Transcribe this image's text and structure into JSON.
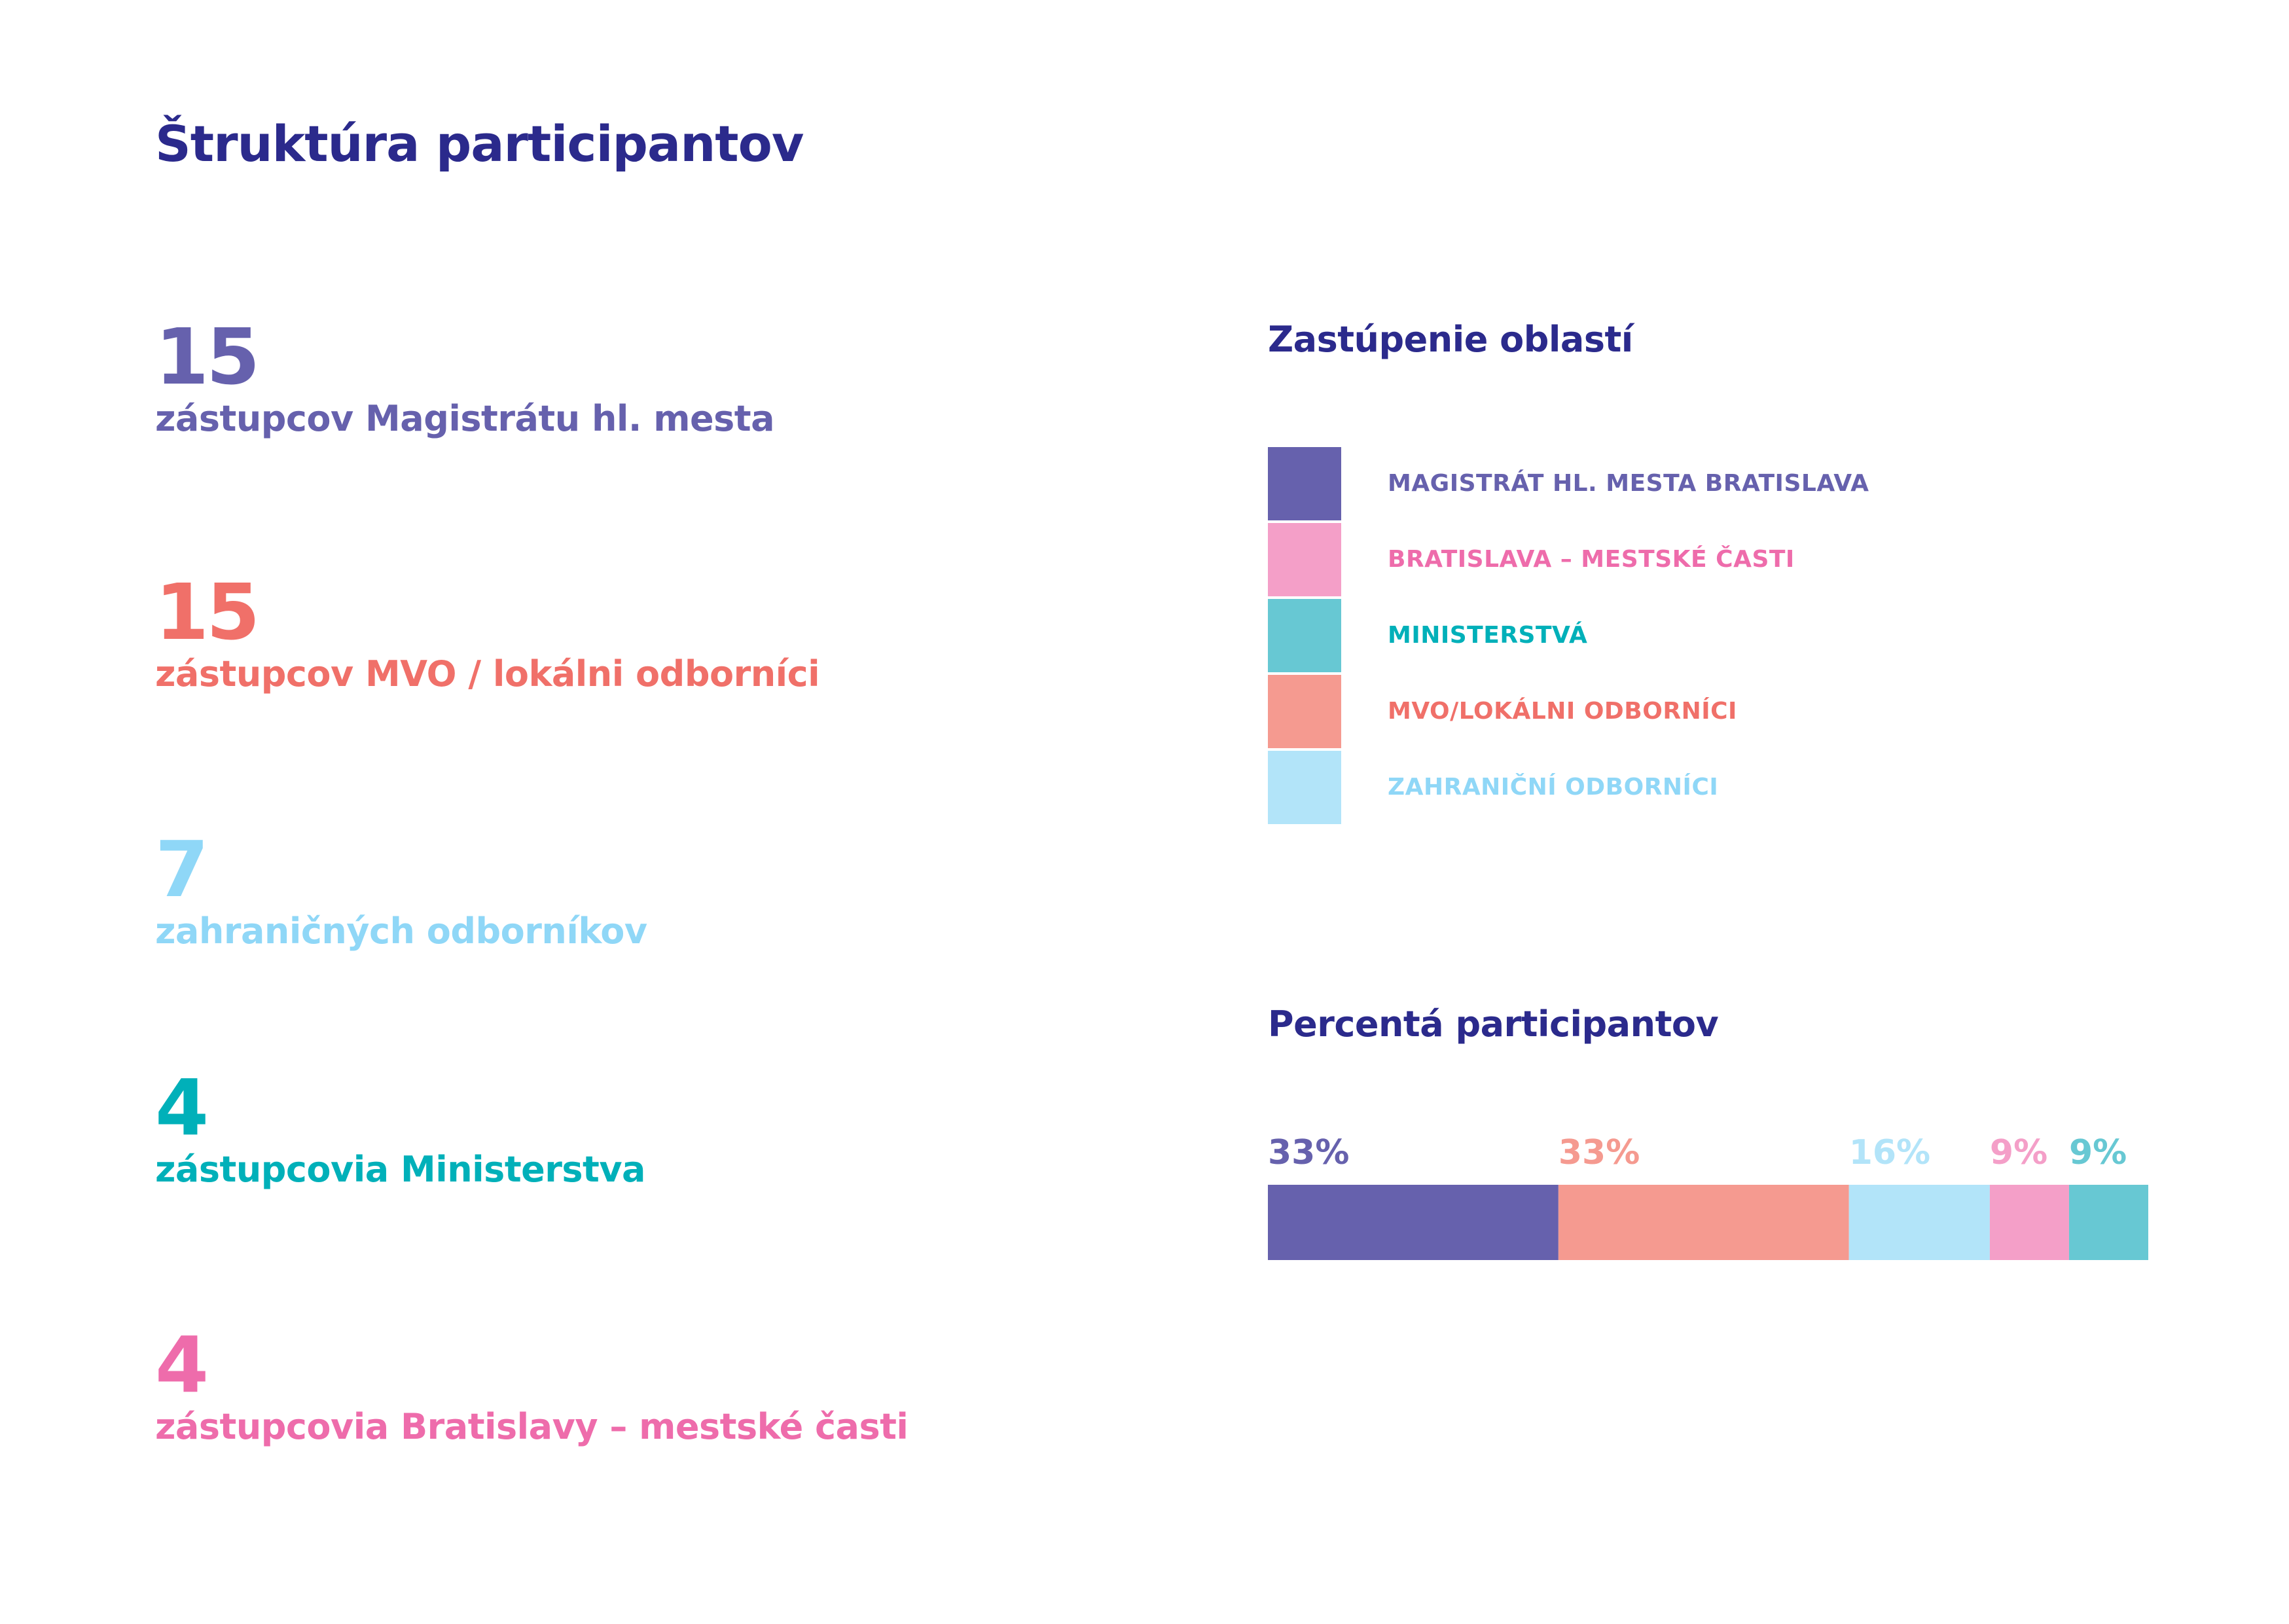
{
  "page": {
    "title": "Štruktúra participantov"
  },
  "stats": [
    {
      "number": "15",
      "label": "zástupcov Magistrátu hl. mesta",
      "color": "#6661ad"
    },
    {
      "number": "15",
      "label": "zástupcov MVO / lokálni odborníci",
      "color": "#f07069"
    },
    {
      "number": "7",
      "label": "zahraničných odborníkov",
      "color": "#8fd7f7"
    },
    {
      "number": "4",
      "label": "zástupcovia Ministerstva",
      "color": "#00b0b9"
    },
    {
      "number": "4",
      "label": "zástupcovia Bratislavy – mestské časti",
      "color": "#ee6cab"
    }
  ],
  "legend": {
    "title": "Zastúpenie oblastí",
    "items": [
      {
        "label": "MAGISTRÁT HL. MESTA BRATISLAVA",
        "color": "#6661ad",
        "text_color": "#6661ad"
      },
      {
        "label": "BRATISLAVA – MESTSKÉ ČASTI",
        "color": "#f49fc8",
        "text_color": "#ee6cab"
      },
      {
        "label": "MINISTERSTVÁ",
        "color": "#67c8d3",
        "text_color": "#00b0b9"
      },
      {
        "label": "MVO/LOKÁLNI ODBORNÍCI",
        "color": "#f59a90",
        "text_color": "#f07069"
      },
      {
        "label": "ZAHRANIČNÍ ODBORNÍCI",
        "color": "#b2e4f9",
        "text_color": "#8fd7f7"
      }
    ]
  },
  "chart_data": {
    "type": "bar",
    "orientation": "horizontal-stacked",
    "title": "Percentá participantov",
    "categories": [
      "Magistrát hl. mesta Bratislava",
      "MVO/lokálni odborníci",
      "Zahraniční odborníci",
      "Bratislava – mestské časti",
      "Ministerstvá"
    ],
    "values": [
      33,
      33,
      16,
      9,
      9
    ],
    "labels": [
      "33%",
      "33%",
      "16%",
      "9%",
      "9%"
    ],
    "colors": [
      "#6661ad",
      "#f59a90",
      "#b2e4f9",
      "#f49fc8",
      "#67c8d3"
    ],
    "label_colors": [
      "#6661ad",
      "#f59a90",
      "#b2e4f9",
      "#f49fc8",
      "#67c8d3"
    ],
    "grid": false
  }
}
